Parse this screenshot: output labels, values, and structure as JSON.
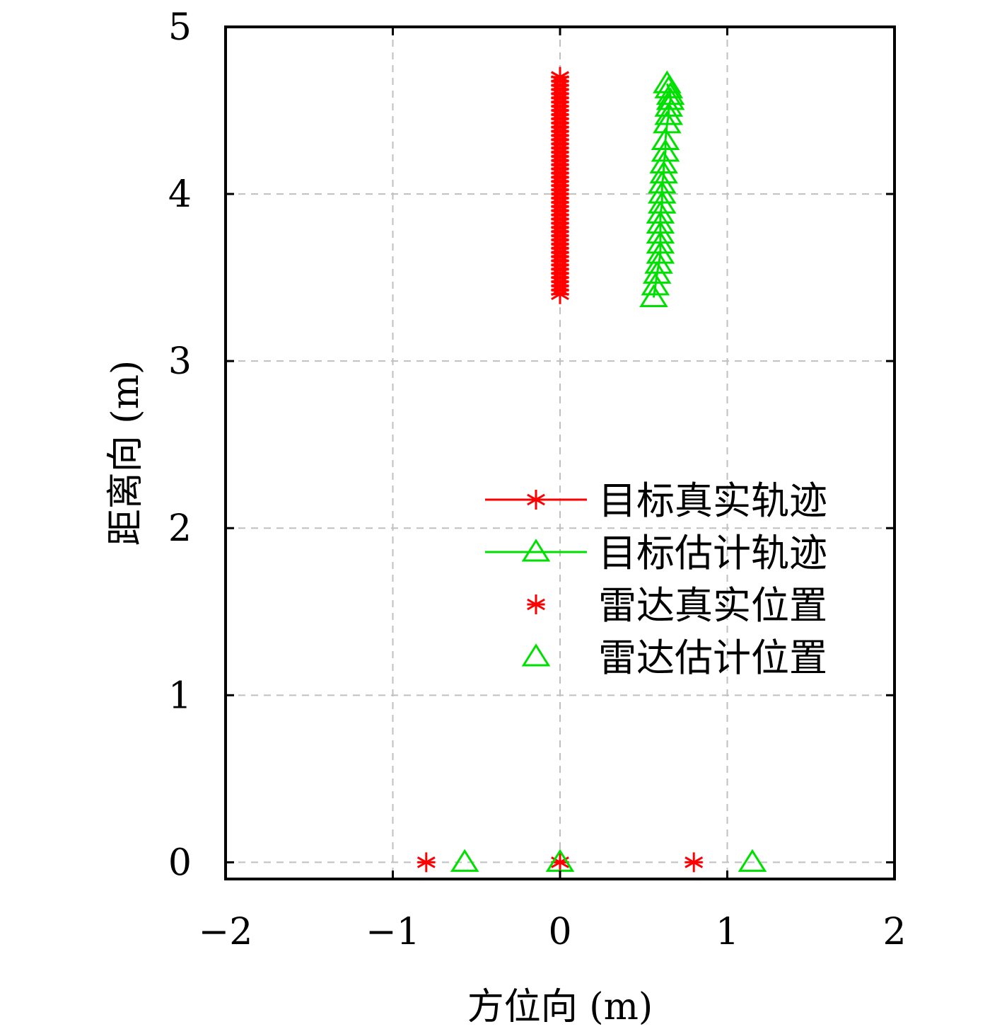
{
  "chart_data": {
    "type": "scatter",
    "xlabel": "方位向 (m)",
    "ylabel": "距离向 (m)",
    "xlim": [
      -2,
      2
    ],
    "ylim": [
      -0.1,
      5
    ],
    "x_ticks": [
      -2,
      -1,
      0,
      1,
      2
    ],
    "x_tick_labels": [
      "−2",
      "−1",
      "0",
      "1",
      "2"
    ],
    "y_ticks": [
      0,
      1,
      2,
      3,
      4,
      5
    ],
    "y_tick_labels": [
      "0",
      "1",
      "2",
      "3",
      "4",
      "5"
    ],
    "grid": true,
    "legend_position": "center-right",
    "series": [
      {
        "name": "目标真实轨迹",
        "color": "#ff0000",
        "marker": "asterisk",
        "line": true,
        "x": [
          0,
          0,
          0,
          0,
          0,
          0,
          0,
          0,
          0,
          0,
          0,
          0,
          0,
          0,
          0,
          0,
          0,
          0,
          0,
          0,
          0,
          0,
          0,
          0,
          0,
          0,
          0,
          0,
          0,
          0,
          0,
          0,
          0,
          0,
          0,
          0,
          0,
          0,
          0,
          0,
          0,
          0,
          0,
          0,
          0,
          0,
          0,
          0,
          0,
          0,
          0,
          0,
          0,
          0,
          0
        ],
        "y": [
          3.4,
          3.425,
          3.45,
          3.475,
          3.5,
          3.525,
          3.55,
          3.575,
          3.6,
          3.625,
          3.65,
          3.675,
          3.7,
          3.725,
          3.75,
          3.775,
          3.8,
          3.825,
          3.85,
          3.875,
          3.9,
          3.925,
          3.95,
          3.975,
          4.0,
          4.025,
          4.05,
          4.075,
          4.1,
          4.125,
          4.15,
          4.175,
          4.2,
          4.225,
          4.25,
          4.275,
          4.3,
          4.325,
          4.35,
          4.375,
          4.4,
          4.425,
          4.45,
          4.475,
          4.5,
          4.525,
          4.55,
          4.575,
          4.6,
          4.625,
          4.65,
          4.675,
          4.7,
          4.7,
          4.7
        ]
      },
      {
        "name": "目标估计轨迹",
        "color": "#00e000",
        "marker": "triangle",
        "line": true,
        "x": [
          0.56,
          0.57,
          0.58,
          0.59,
          0.6,
          0.6,
          0.6,
          0.6,
          0.6,
          0.61,
          0.61,
          0.61,
          0.62,
          0.62,
          0.63,
          0.63,
          0.64,
          0.65,
          0.65,
          0.66,
          0.66,
          0.65,
          0.64
        ],
        "y": [
          3.38,
          3.45,
          3.52,
          3.58,
          3.64,
          3.7,
          3.76,
          3.82,
          3.88,
          3.94,
          4.0,
          4.06,
          4.12,
          4.18,
          4.25,
          4.32,
          4.42,
          4.47,
          4.52,
          4.56,
          4.59,
          4.63,
          4.66
        ]
      },
      {
        "name": "雷达真实位置",
        "color": "#ff0000",
        "marker": "asterisk",
        "line": false,
        "x": [
          -0.8,
          0,
          0.8
        ],
        "y": [
          0,
          0,
          0
        ]
      },
      {
        "name": "雷达估计位置",
        "color": "#00e000",
        "marker": "triangle",
        "line": false,
        "x": [
          -0.57,
          0,
          1.15
        ],
        "y": [
          0,
          0,
          0
        ]
      }
    ]
  }
}
